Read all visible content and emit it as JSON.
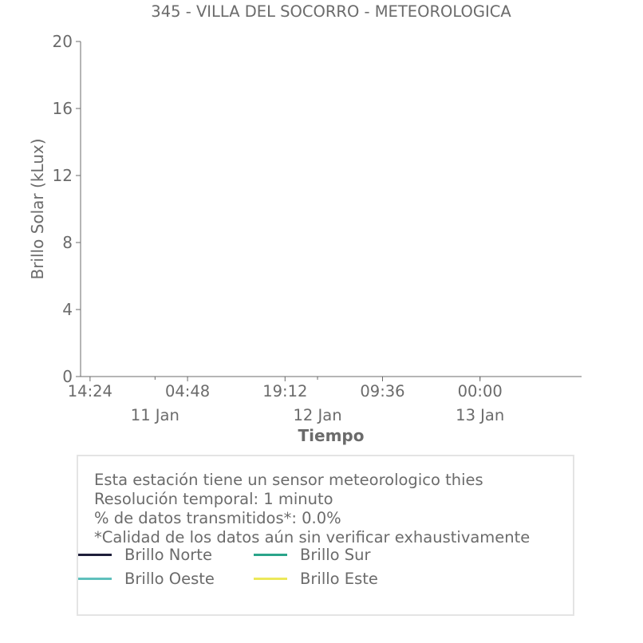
{
  "chart_data": {
    "type": "line",
    "title": "345 - VILLA DEL SOCORRO - METEOROLOGICA",
    "xlabel": "Tiempo",
    "ylabel": "Brillo Solar (kLux)",
    "ylim": [
      0,
      20
    ],
    "yticks": [
      0,
      4,
      8,
      12,
      16,
      20
    ],
    "xlim": [
      "2025-01-10T13:00",
      "2025-01-13T15:00"
    ],
    "xticks_time": [
      {
        "t": "2025-01-10T14:24",
        "label": "14:24"
      },
      {
        "t": "2025-01-11T04:48",
        "label": "04:48"
      },
      {
        "t": "2025-01-11T19:12",
        "label": "19:12"
      },
      {
        "t": "2025-01-12T09:36",
        "label": "09:36"
      },
      {
        "t": "2025-01-13T00:00",
        "label": "00:00"
      }
    ],
    "xticks_date": [
      {
        "t": "2025-01-11T00:00",
        "label": "11 Jan"
      },
      {
        "t": "2025-01-12T00:00",
        "label": "12 Jan"
      },
      {
        "t": "2025-01-13T00:00",
        "label": "13 Jan"
      }
    ],
    "series": [
      {
        "name": "Brillo Norte",
        "color": "#1f1f3a",
        "values": []
      },
      {
        "name": "Brillo Sur",
        "color": "#2aa48a",
        "values": []
      },
      {
        "name": "Brillo Oeste",
        "color": "#5fc0bc",
        "values": []
      },
      {
        "name": "Brillo Este",
        "color": "#ece85a",
        "values": []
      }
    ],
    "grid": false,
    "legend_position": "bottom"
  },
  "info": {
    "lines": [
      "Esta estación tiene un sensor meteorologico thies",
      "Resolución temporal: 1 minuto",
      "% de datos transmitidos*: 0.0%",
      "*Calidad de los datos aún sin verificar exhaustivamente"
    ]
  }
}
